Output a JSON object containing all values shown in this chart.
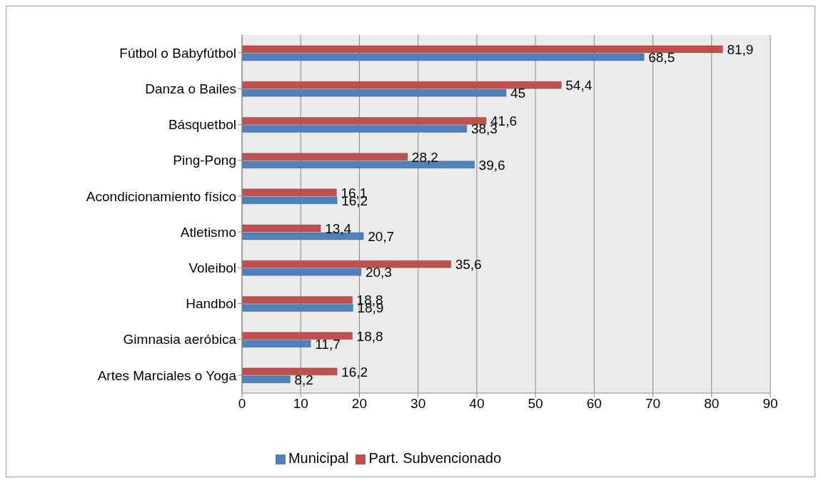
{
  "chart_data": {
    "type": "bar",
    "orientation": "horizontal",
    "categories": [
      "Fútbol o Babyfútbol",
      "Danza o Bailes",
      "Básquetbol",
      "Ping-Pong",
      "Acondicionamiento físico",
      "Atletismo",
      "Voleibol",
      "Handbol",
      "Gimnasia aeróbica",
      "Artes Marciales o Yoga"
    ],
    "series": [
      {
        "name": "Part. Subvencionado",
        "color": "#c0504d",
        "values": [
          81.9,
          54.4,
          41.6,
          28.2,
          16.1,
          13.4,
          35.6,
          18.8,
          18.8,
          16.2
        ],
        "value_labels": [
          "81,9",
          "54,4",
          "41,6",
          "28,2",
          "16,1",
          "13,4",
          "35,6",
          "18,8",
          "18,8",
          "16,2"
        ]
      },
      {
        "name": "Municipal",
        "color": "#4f81bd",
        "values": [
          68.5,
          45,
          38.3,
          39.6,
          16.2,
          20.7,
          20.3,
          18.9,
          11.7,
          8.2
        ],
        "value_labels": [
          "68,5",
          "45",
          "38,3",
          "39,6",
          "16,2",
          "20,7",
          "20,3",
          "18,9",
          "11,7",
          "8,2"
        ]
      }
    ],
    "xlim": [
      0,
      90
    ],
    "xticks": [
      0,
      10,
      20,
      30,
      40,
      50,
      60,
      70,
      80,
      90
    ],
    "grid": "x",
    "legend": "bottom"
  }
}
